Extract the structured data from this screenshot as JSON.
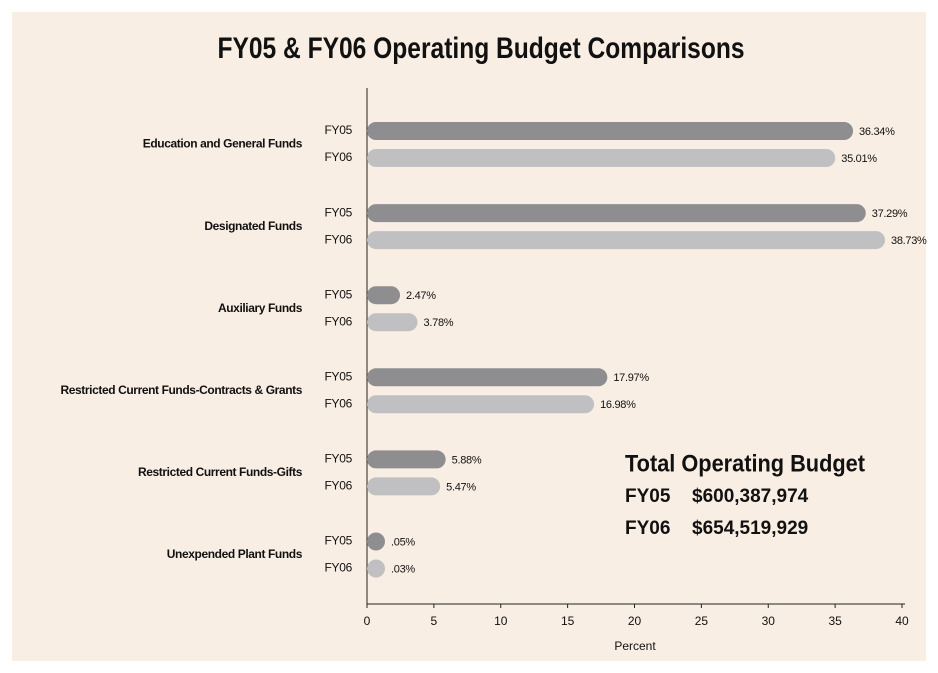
{
  "chart_data": {
    "type": "bar",
    "orientation": "horizontal",
    "title": "FY05 & FY06 Operating Budget Comparisons",
    "xlabel": "Percent",
    "categories": [
      "Education and General Funds",
      "Designated Funds",
      "Auxiliary Funds",
      "Restricted Current Funds-Contracts & Grants",
      "Restricted Current Funds-Gifts",
      "Unexpended Plant Funds"
    ],
    "series": [
      {
        "name": "FY05",
        "color": "#8e8e90",
        "values": [
          36.34,
          37.29,
          2.47,
          17.97,
          5.88,
          0.05
        ],
        "value_labels": [
          "36.34%",
          "37.29%",
          "2.47%",
          "17.97%",
          "5.88%",
          ".05%"
        ]
      },
      {
        "name": "FY06",
        "color": "#c0c0c2",
        "values": [
          35.01,
          38.73,
          3.78,
          16.98,
          5.47,
          0.03
        ],
        "value_labels": [
          "35.01%",
          "38.73%",
          "3.78%",
          "16.98%",
          "5.47%",
          ".03%"
        ]
      }
    ],
    "xlim": [
      0,
      40
    ],
    "xticks": [
      0,
      5,
      10,
      15,
      20,
      25,
      30,
      35,
      40
    ],
    "annotation": {
      "title": "Total Operating Budget",
      "rows": [
        {
          "label": "FY05",
          "amount": "$600,387,974"
        },
        {
          "label": "FY06",
          "amount": "$654,519,929"
        }
      ]
    }
  }
}
